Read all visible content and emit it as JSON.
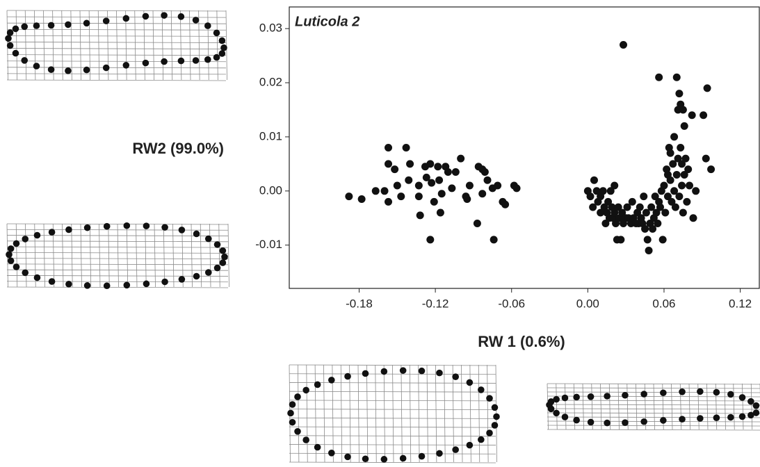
{
  "chart_data": {
    "type": "scatter",
    "title": "Luticola 2",
    "x_label": "RW 1 (0.6%)",
    "y_label": "RW2 (99.0%)",
    "color": "#111111",
    "xlim": [
      -0.235,
      0.135
    ],
    "ylim": [
      -0.018,
      0.034
    ],
    "xticks": [
      -0.18,
      -0.12,
      -0.06,
      {
        "value": 0,
        "label": "0.00"
      },
      0.06,
      0.12
    ],
    "yticks": [
      0.03,
      0.02,
      0.01,
      {
        "value": 0,
        "label": "0.00"
      },
      -0.01
    ],
    "x": [
      -0.188,
      -0.178,
      -0.167,
      -0.16,
      -0.157,
      -0.143,
      -0.157,
      -0.157,
      -0.15,
      -0.152,
      -0.147,
      -0.14,
      -0.141,
      -0.133,
      -0.133,
      -0.132,
      -0.128,
      -0.127,
      -0.124,
      -0.123,
      -0.121,
      -0.124,
      -0.118,
      -0.117,
      -0.116,
      -0.115,
      -0.112,
      -0.11,
      -0.107,
      -0.104,
      -0.1,
      -0.096,
      -0.095,
      -0.093,
      -0.087,
      -0.086,
      -0.083,
      -0.081,
      -0.079,
      -0.075,
      -0.074,
      -0.071,
      -0.067,
      -0.065,
      -0.058,
      -0.056,
      -0.083,
      0.0,
      0.002,
      0.004,
      0.005,
      0.007,
      0.008,
      0.01,
      0.01,
      0.012,
      0.013,
      0.014,
      0.015,
      0.016,
      0.017,
      0.018,
      0.019,
      0.02,
      0.021,
      0.021,
      0.022,
      0.023,
      0.024,
      0.025,
      0.026,
      0.027,
      0.028,
      0.028,
      0.03,
      0.031,
      0.032,
      0.034,
      0.035,
      0.036,
      0.038,
      0.039,
      0.04,
      0.041,
      0.042,
      0.043,
      0.044,
      0.045,
      0.046,
      0.047,
      0.048,
      0.049,
      0.05,
      0.051,
      0.052,
      0.053,
      0.054,
      0.055,
      0.056,
      0.056,
      0.057,
      0.058,
      0.059,
      0.06,
      0.061,
      0.062,
      0.063,
      0.063,
      0.064,
      0.065,
      0.065,
      0.066,
      0.067,
      0.068,
      0.068,
      0.069,
      0.07,
      0.07,
      0.071,
      0.071,
      0.072,
      0.072,
      0.073,
      0.073,
      0.074,
      0.074,
      0.075,
      0.075,
      0.076,
      0.076,
      0.077,
      0.078,
      0.079,
      0.08,
      0.082,
      0.083,
      0.085,
      0.091,
      0.093,
      0.094,
      0.097
    ],
    "values": [
      -0.001,
      -0.0015,
      0.0,
      0.0,
      0.008,
      0.008,
      0.005,
      -0.002,
      0.001,
      0.004,
      -0.001,
      0.005,
      0.002,
      -0.001,
      0.001,
      -0.0045,
      0.0045,
      0.0025,
      0.005,
      0.0015,
      -0.002,
      -0.009,
      0.0045,
      0.002,
      -0.004,
      -0.0005,
      0.0045,
      0.0035,
      0.0005,
      0.0035,
      0.006,
      -0.001,
      -0.0015,
      0.001,
      -0.006,
      0.0045,
      0.004,
      0.0035,
      0.002,
      0.0005,
      -0.009,
      0.001,
      -0.002,
      -0.0025,
      0.001,
      0.0005,
      -0.0005,
      0.0,
      -0.001,
      -0.003,
      0.002,
      0.0,
      -0.002,
      -0.001,
      -0.004,
      0.0,
      -0.003,
      -0.006,
      -0.004,
      -0.002,
      -0.005,
      0.0,
      -0.003,
      -0.005,
      -0.004,
      0.001,
      -0.006,
      -0.009,
      -0.003,
      -0.005,
      -0.009,
      -0.004,
      0.027,
      -0.006,
      -0.005,
      -0.003,
      -0.005,
      -0.006,
      -0.002,
      -0.005,
      -0.006,
      -0.004,
      -0.006,
      -0.003,
      -0.005,
      -0.006,
      -0.001,
      -0.007,
      -0.004,
      -0.009,
      -0.011,
      -0.006,
      -0.003,
      -0.007,
      -0.005,
      -0.001,
      -0.004,
      -0.006,
      0.021,
      -0.002,
      -0.003,
      0.0,
      -0.009,
      0.001,
      -0.004,
      0.004,
      0.003,
      -0.001,
      0.008,
      0.007,
      0.002,
      -0.002,
      0.005,
      0.0,
      0.01,
      -0.003,
      0.021,
      0.003,
      0.015,
      0.006,
      0.018,
      -0.001,
      0.016,
      0.008,
      0.005,
      0.001,
      0.015,
      -0.004,
      0.012,
      0.003,
      0.006,
      -0.002,
      0.004,
      0.001,
      0.014,
      -0.005,
      0.0,
      0.014,
      0.006,
      0.019,
      0.004
    ]
  }
}
